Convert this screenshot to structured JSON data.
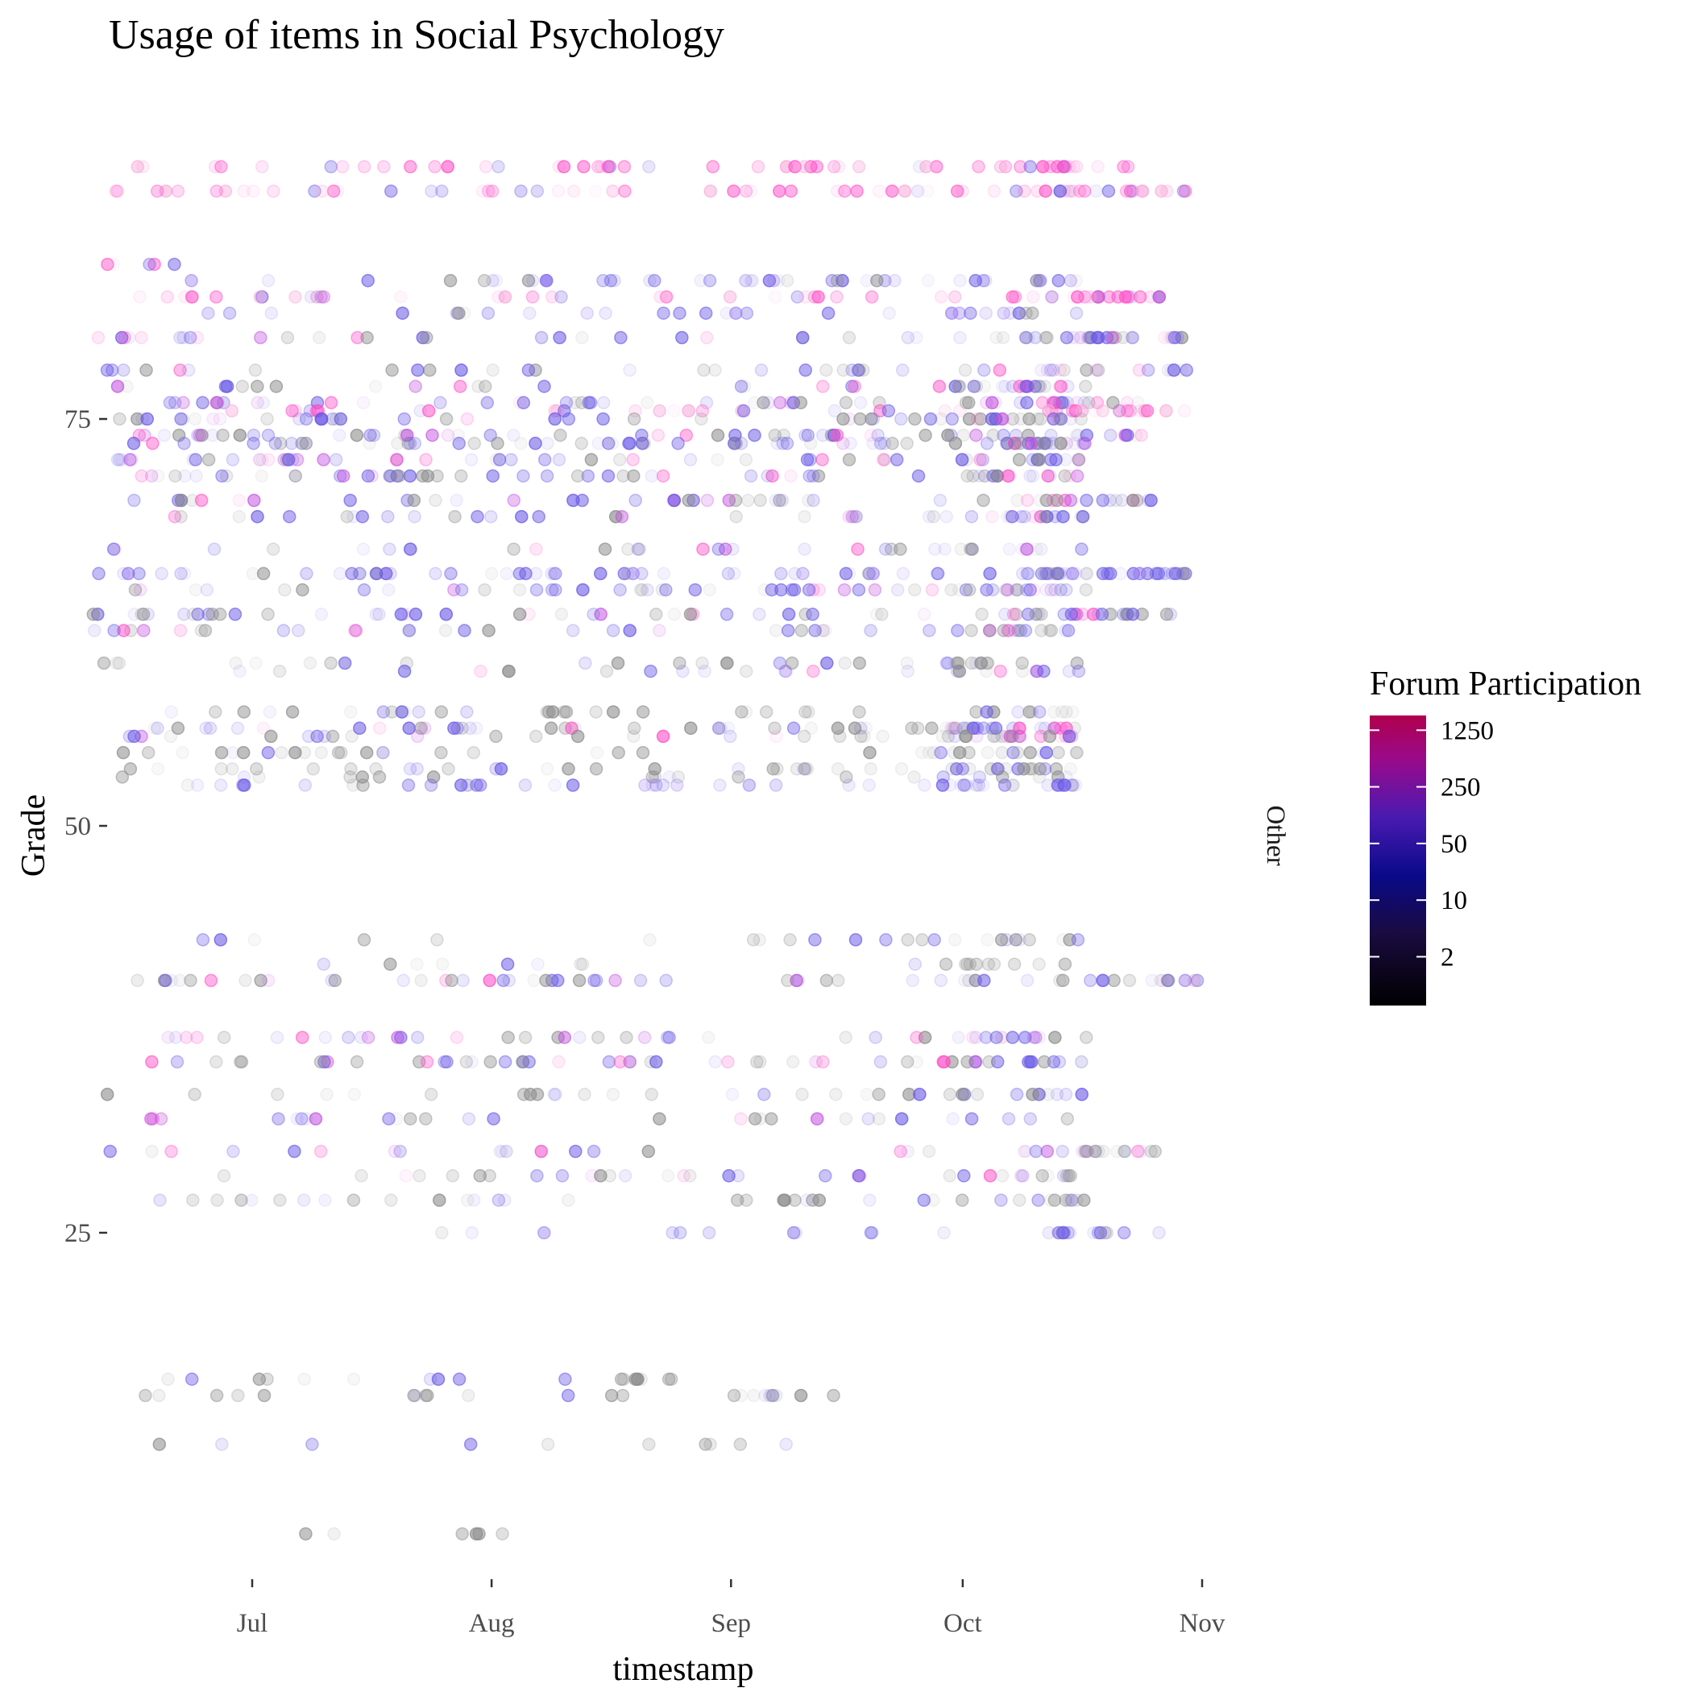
{
  "chart_data": {
    "type": "scatter",
    "title": "Usage of items in Social Psychology",
    "xlabel": "timestamp",
    "ylabel": "Grade",
    "facet_label": "Other",
    "x_ticks": [
      "Jul",
      "Aug",
      "Sep",
      "Oct",
      "Nov"
    ],
    "y_ticks": [
      25,
      50,
      75
    ],
    "xlim": [
      "2014-06-10",
      "2014-11-02"
    ],
    "ylim": [
      4,
      92
    ],
    "grid": false,
    "legend": {
      "title": "Forum Participation",
      "placement": "right",
      "scale": "log",
      "ticks": [
        2,
        10,
        50,
        250,
        1250
      ],
      "colors": [
        "#000000",
        "#1a0b40",
        "#0a0a8a",
        "#5a2ad0",
        "#b0108a",
        "#b0004c"
      ]
    },
    "point_colors": {
      "low": "#8c8c8c",
      "mid": "#6a5ae6",
      "high": "#ff4fc8"
    },
    "rows": [
      {
        "grade": 90.5,
        "start": "2014-06-15",
        "end": "2014-10-23",
        "level": "high",
        "n": 55
      },
      {
        "grade": 89,
        "start": "2014-06-11",
        "end": "2014-10-30",
        "level": "high",
        "n": 70
      },
      {
        "grade": 84.5,
        "start": "2014-06-12",
        "end": "2014-06-22",
        "level": "high",
        "n": 5
      },
      {
        "grade": 83.5,
        "start": "2014-06-20",
        "end": "2014-10-17",
        "level": "mid",
        "n": 45
      },
      {
        "grade": 82.5,
        "start": "2014-06-12",
        "end": "2014-10-27",
        "level": "high",
        "n": 55
      },
      {
        "grade": 81.5,
        "start": "2014-06-25",
        "end": "2014-10-17",
        "level": "mid",
        "n": 30
      },
      {
        "grade": 80,
        "start": "2014-06-10",
        "end": "2014-10-30",
        "level": "mix",
        "n": 60
      },
      {
        "grade": 78,
        "start": "2014-06-12",
        "end": "2014-10-30",
        "level": "mix",
        "n": 45
      },
      {
        "grade": 77,
        "start": "2014-06-12",
        "end": "2014-10-17",
        "level": "mix",
        "n": 40
      },
      {
        "grade": 76,
        "start": "2014-06-10",
        "end": "2014-10-24",
        "level": "mix",
        "n": 55
      },
      {
        "grade": 75.5,
        "start": "2014-06-25",
        "end": "2014-10-30",
        "level": "high",
        "n": 45
      },
      {
        "grade": 75,
        "start": "2014-06-12",
        "end": "2014-10-17",
        "level": "mix",
        "n": 55
      },
      {
        "grade": 74,
        "start": "2014-06-12",
        "end": "2014-10-25",
        "level": "mix",
        "n": 60
      },
      {
        "grade": 73.5,
        "start": "2014-06-15",
        "end": "2014-10-17",
        "level": "mix",
        "n": 70
      },
      {
        "grade": 72.5,
        "start": "2014-06-12",
        "end": "2014-10-17",
        "level": "mix",
        "n": 55
      },
      {
        "grade": 71.5,
        "start": "2014-06-12",
        "end": "2014-10-17",
        "level": "mix",
        "n": 60
      },
      {
        "grade": 70,
        "start": "2014-06-15",
        "end": "2014-10-27",
        "level": "mix",
        "n": 55
      },
      {
        "grade": 69,
        "start": "2014-06-15",
        "end": "2014-10-20",
        "level": "mix",
        "n": 45
      },
      {
        "grade": 67,
        "start": "2014-06-12",
        "end": "2014-10-17",
        "level": "mix",
        "n": 35
      },
      {
        "grade": 65.5,
        "start": "2014-06-10",
        "end": "2014-10-30",
        "level": "mid",
        "n": 90
      },
      {
        "grade": 64.5,
        "start": "2014-06-12",
        "end": "2014-10-17",
        "level": "mix",
        "n": 60
      },
      {
        "grade": 63,
        "start": "2014-06-10",
        "end": "2014-10-28",
        "level": "mix",
        "n": 65
      },
      {
        "grade": 62,
        "start": "2014-06-10",
        "end": "2014-10-17",
        "level": "mix",
        "n": 45
      },
      {
        "grade": 60,
        "start": "2014-06-10",
        "end": "2014-10-17",
        "level": "low",
        "n": 35
      },
      {
        "grade": 59.5,
        "start": "2014-06-25",
        "end": "2014-10-17",
        "level": "mix",
        "n": 25
      },
      {
        "grade": 57,
        "start": "2014-06-15",
        "end": "2014-10-17",
        "level": "low",
        "n": 40
      },
      {
        "grade": 56,
        "start": "2014-06-12",
        "end": "2014-10-17",
        "level": "mix",
        "n": 60
      },
      {
        "grade": 55.5,
        "start": "2014-06-12",
        "end": "2014-10-17",
        "level": "mix",
        "n": 45
      },
      {
        "grade": 54.5,
        "start": "2014-06-12",
        "end": "2014-10-17",
        "level": "low",
        "n": 40
      },
      {
        "grade": 53.5,
        "start": "2014-06-12",
        "end": "2014-10-17",
        "level": "low",
        "n": 45
      },
      {
        "grade": 53,
        "start": "2014-06-12",
        "end": "2014-10-17",
        "level": "low",
        "n": 20
      },
      {
        "grade": 52.5,
        "start": "2014-06-15",
        "end": "2014-10-17",
        "level": "mid",
        "n": 50
      },
      {
        "grade": 43,
        "start": "2014-06-20",
        "end": "2014-10-17",
        "level": "low",
        "n": 25
      },
      {
        "grade": 41.5,
        "start": "2014-06-10",
        "end": "2014-10-17",
        "level": "low",
        "n": 20
      },
      {
        "grade": 40.5,
        "start": "2014-06-12",
        "end": "2014-11-01",
        "level": "mix",
        "n": 60
      },
      {
        "grade": 37,
        "start": "2014-06-12",
        "end": "2014-10-17",
        "level": "mix",
        "n": 45
      },
      {
        "grade": 35.5,
        "start": "2014-06-15",
        "end": "2014-10-17",
        "level": "mix",
        "n": 55
      },
      {
        "grade": 33.5,
        "start": "2014-06-12",
        "end": "2014-10-17",
        "level": "low",
        "n": 35
      },
      {
        "grade": 32,
        "start": "2014-06-12",
        "end": "2014-10-17",
        "level": "mix",
        "n": 30
      },
      {
        "grade": 30,
        "start": "2014-06-12",
        "end": "2014-10-27",
        "level": "mix",
        "n": 40
      },
      {
        "grade": 28.5,
        "start": "2014-06-15",
        "end": "2014-10-17",
        "level": "mix",
        "n": 35
      },
      {
        "grade": 27,
        "start": "2014-06-15",
        "end": "2014-10-17",
        "level": "low",
        "n": 40
      },
      {
        "grade": 25,
        "start": "2014-07-25",
        "end": "2014-10-27",
        "level": "mid",
        "n": 25
      },
      {
        "grade": 16,
        "start": "2014-06-20",
        "end": "2014-08-28",
        "level": "low",
        "n": 20
      },
      {
        "grade": 15,
        "start": "2014-06-15",
        "end": "2014-09-15",
        "level": "low",
        "n": 25
      },
      {
        "grade": 12,
        "start": "2014-06-15",
        "end": "2014-09-10",
        "level": "low",
        "n": 10
      },
      {
        "grade": 6.5,
        "start": "2014-07-05",
        "end": "2014-08-07",
        "level": "low",
        "n": 6
      }
    ]
  }
}
